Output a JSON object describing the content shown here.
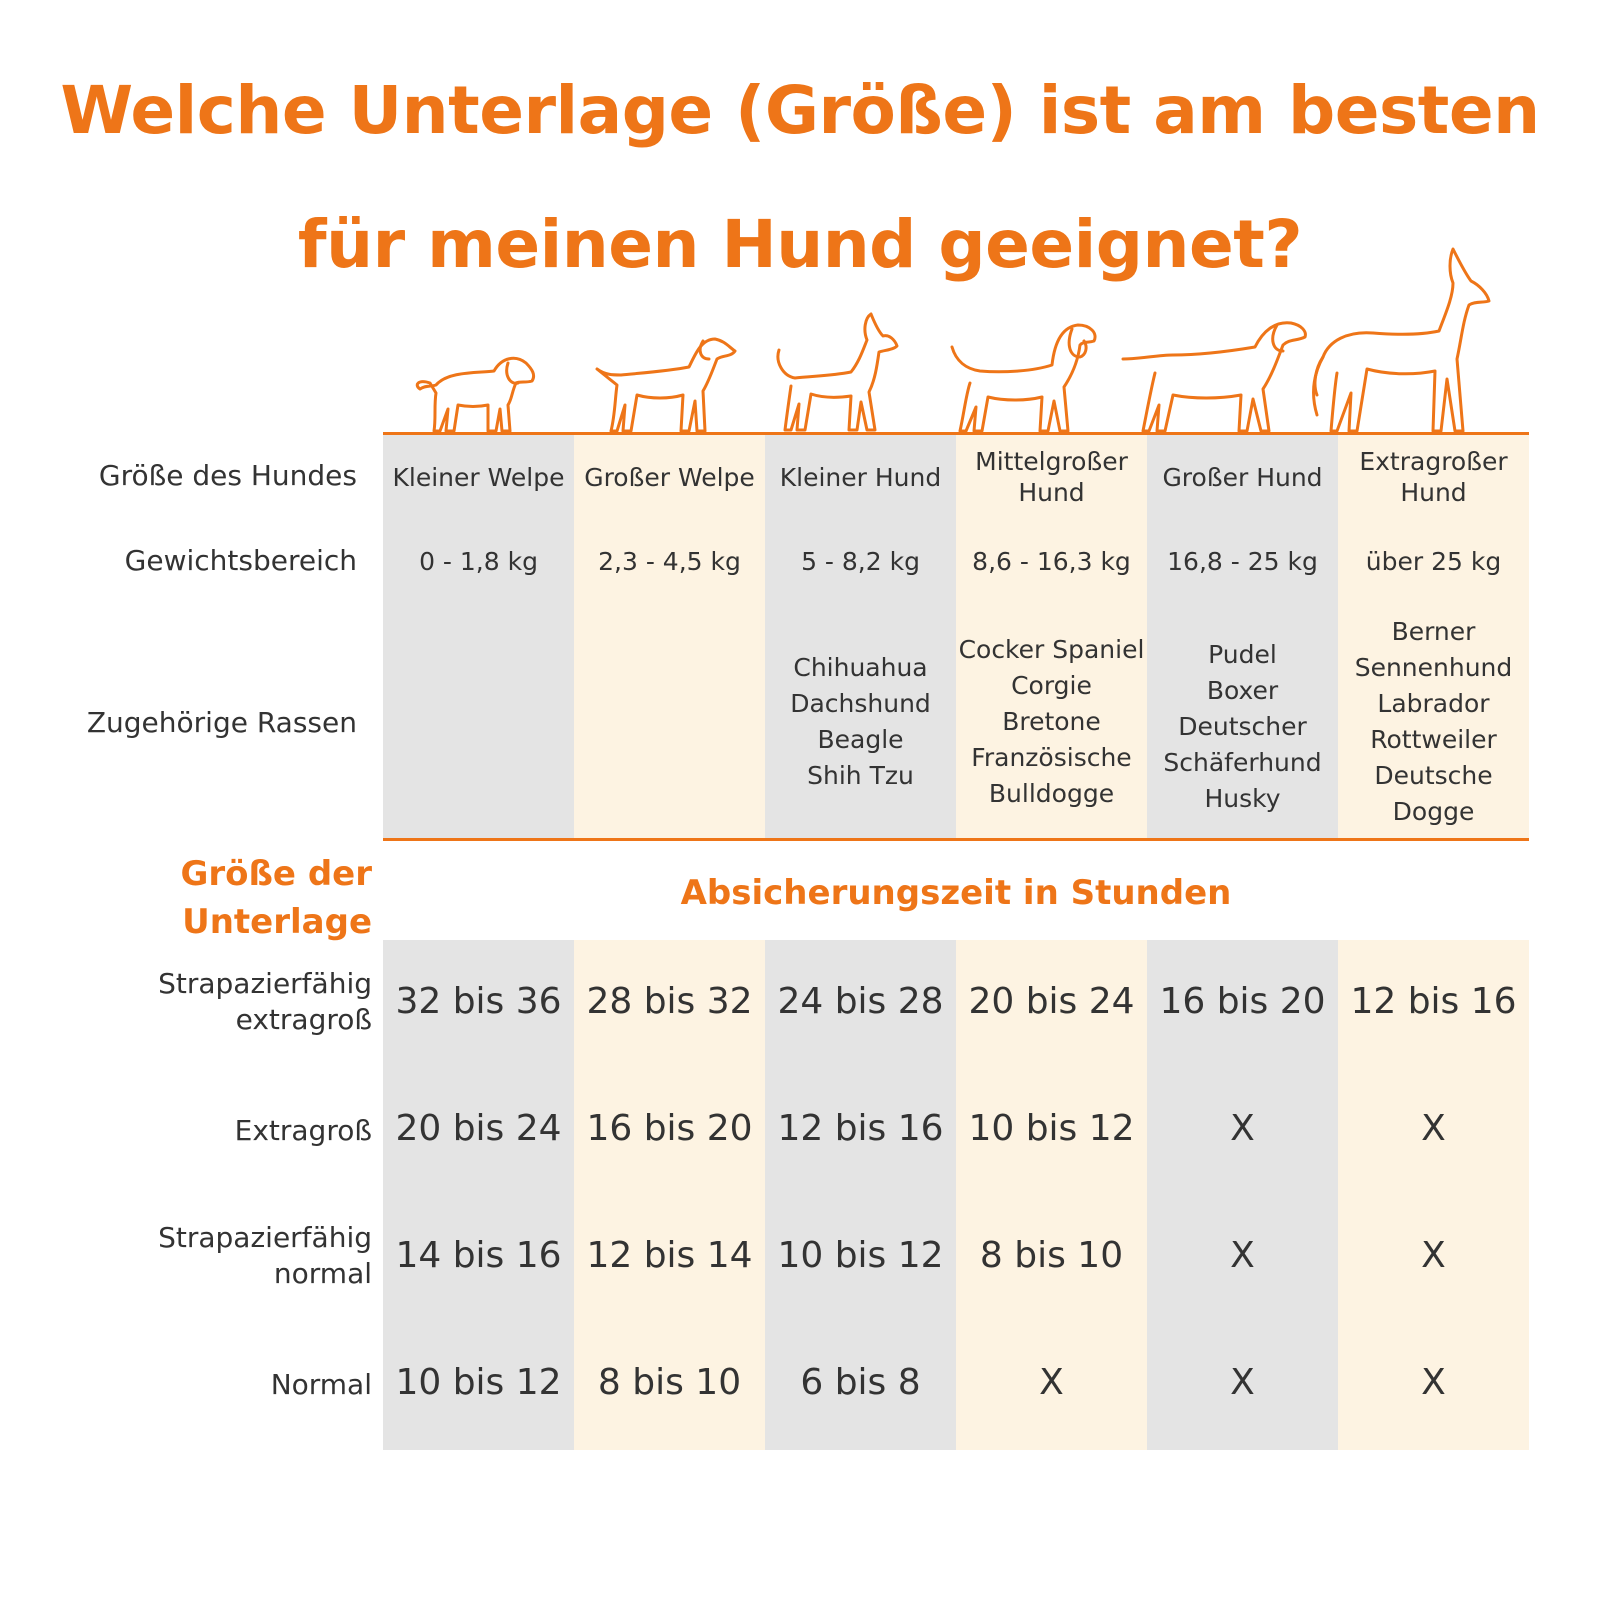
{
  "title": {
    "line1": "Welche Unterlage (Größe) ist am besten",
    "line2": "für meinen Hund geeignet?"
  },
  "colors": {
    "accent": "#ee7518",
    "gray_col": "#e4e4e4",
    "cream_col": "#fdf3e2",
    "text": "#333333"
  },
  "dog_icons": [
    "small-puppy-icon",
    "large-puppy-icon",
    "small-dog-icon",
    "medium-dog-icon",
    "large-dog-icon",
    "extra-large-dog-icon"
  ],
  "row_labels": {
    "size": "Größe des Hundes",
    "weight": "Gewichtsbereich",
    "breeds": "Zugehörige Rassen"
  },
  "columns": [
    {
      "size": "Kleiner Welpe",
      "weight": "0 - 1,8 kg",
      "breeds": []
    },
    {
      "size": "Großer Welpe",
      "weight": "2,3 - 4,5 kg",
      "breeds": []
    },
    {
      "size": "Kleiner Hund",
      "weight": "5 - 8,2 kg",
      "breeds": [
        "Chihuahua",
        "Dachshund",
        "Beagle",
        "Shih Tzu"
      ]
    },
    {
      "size": [
        "Mittelgroßer",
        "Hund"
      ],
      "weight": "8,6 - 16,3 kg",
      "breeds": [
        "Cocker Spaniel",
        "Corgie",
        "Bretone",
        "Französische",
        "Bulldogge"
      ]
    },
    {
      "size": "Großer Hund",
      "weight": "16,8 - 25 kg",
      "breeds": [
        "Pudel",
        "Boxer",
        "Deutscher",
        "Schäferhund",
        "Husky"
      ]
    },
    {
      "size": [
        "Extragroßer",
        "Hund"
      ],
      "weight": "über 25 kg",
      "breeds": [
        "Berner",
        "Sennenhund",
        "Labrador",
        "Rottweiler",
        "Deutsche",
        "Dogge"
      ]
    }
  ],
  "pad_section": {
    "label_line1": "Größe der",
    "label_line2": "Unterlage",
    "subheading": "Absicherungszeit in Stunden"
  },
  "pads": [
    {
      "label": [
        "Strapazierfähig",
        "extragroß"
      ],
      "values": [
        "32 bis 36",
        "28 bis 32",
        "24 bis 28",
        "20 bis 24",
        "16 bis 20",
        "12 bis 16"
      ]
    },
    {
      "label": [
        "Extragroß"
      ],
      "values": [
        "20 bis 24",
        "16 bis 20",
        "12 bis 16",
        "10 bis 12",
        "X",
        "X"
      ]
    },
    {
      "label": [
        "Strapazierfähig",
        "normal"
      ],
      "values": [
        "14 bis 16",
        "12 bis 14",
        "10 bis 12",
        "8 bis 10",
        "X",
        "X"
      ]
    },
    {
      "label": [
        "Normal"
      ],
      "values": [
        "10 bis 12",
        "8 bis 10",
        "6 bis 8",
        "X",
        "X",
        "X"
      ]
    }
  ]
}
